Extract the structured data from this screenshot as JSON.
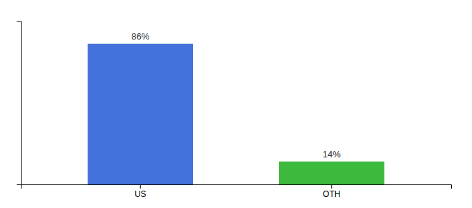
{
  "chart_data": {
    "type": "bar",
    "categories": [
      "US",
      "OTH"
    ],
    "values": [
      86,
      14
    ],
    "colors": [
      "#4472db",
      "#3dba3d"
    ],
    "data_labels": true,
    "value_labels": [
      "86%",
      "14%"
    ],
    "ylim": [
      0,
      100
    ],
    "yticks": [],
    "grid": false,
    "tick_labels": "x"
  }
}
